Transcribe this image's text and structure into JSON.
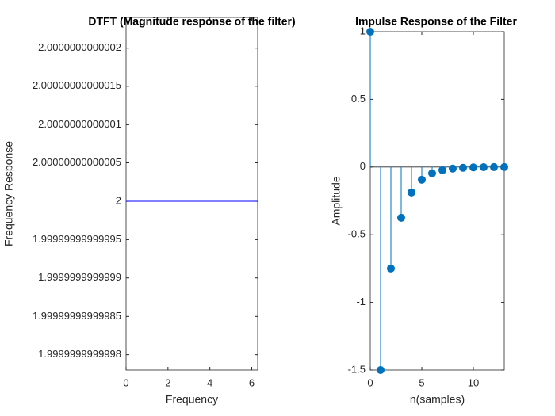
{
  "chart_data": [
    {
      "type": "line",
      "title": "DTFT (Magnitude response of the filter)",
      "xlabel": "Frequency",
      "ylabel": "Frequency Response",
      "x": [
        0,
        6.2832
      ],
      "series": [
        {
          "color": "#0000ff",
          "values": [
            2,
            2
          ]
        }
      ],
      "xlim": [
        0,
        6.2832
      ],
      "xticks": [
        0,
        2,
        4,
        6
      ],
      "ylim": [
        1.99999999999978,
        2.00000000000024
      ],
      "yticks": [
        1.9999999999998,
        1.99999999999985,
        1.9999999999999,
        1.99999999999995,
        2,
        2.00000000000005,
        2.0000000000001,
        2.00000000000015,
        2.0000000000002
      ]
    },
    {
      "type": "stem",
      "title": "Impulse Response of the Filter",
      "xlabel": "n(samples)",
      "ylabel": "Amplitude",
      "x": [
        0,
        1,
        2,
        3,
        4,
        5,
        6,
        7,
        8,
        9,
        10,
        11,
        12,
        13
      ],
      "series": [
        {
          "color": "#0072bd",
          "values": [
            1,
            -1.5,
            -0.75,
            -0.375,
            -0.1875,
            -0.09375,
            -0.046875,
            -0.0234375,
            -0.01171875,
            -0.005859375,
            -0.0029296875,
            -0.00146484375,
            -0.000732421875,
            -0.0003662109375
          ]
        }
      ],
      "xlim": [
        0,
        13
      ],
      "xticks": [
        0,
        5,
        10
      ],
      "ylim": [
        -1.5,
        1
      ],
      "yticks": [
        -1.5,
        -1,
        -0.5,
        0,
        0.5,
        1
      ]
    }
  ]
}
